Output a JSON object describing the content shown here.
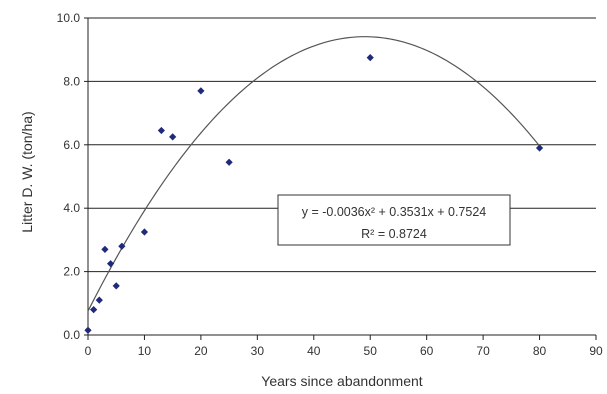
{
  "chart_data": {
    "type": "scatter",
    "xlabel": "Years since abandonment",
    "ylabel": "Litter D. W. (ton/ha)",
    "xlim": [
      0,
      90
    ],
    "ylim": [
      0,
      10
    ],
    "x_ticks": [
      "0",
      "10",
      "20",
      "30",
      "40",
      "50",
      "60",
      "70",
      "80",
      "90"
    ],
    "y_ticks": [
      "0.0",
      "2.0",
      "4.0",
      "6.0",
      "8.0",
      "10.0"
    ],
    "grid": "horizontal",
    "series": [
      {
        "points": [
          [
            0,
            0.15
          ],
          [
            1,
            0.8
          ],
          [
            2,
            1.1
          ],
          [
            3,
            2.7
          ],
          [
            4,
            2.25
          ],
          [
            5,
            1.55
          ],
          [
            6,
            2.8
          ],
          [
            10,
            3.25
          ],
          [
            13,
            6.45
          ],
          [
            15,
            6.25
          ],
          [
            20,
            7.7
          ],
          [
            25,
            5.45
          ],
          [
            50,
            8.75
          ],
          [
            80,
            5.9
          ]
        ]
      }
    ],
    "trendline": {
      "type": "polynomial",
      "coefficients": {
        "a": -0.0036,
        "b": 0.3531,
        "c": 0.7524
      },
      "equation_text": "y = -0.0036x² + 0.3531x + 0.7524",
      "r2_text": "R² = 0.8724"
    },
    "colors": {
      "points": "#1f2a78",
      "trendline": "#555555",
      "grid": "#222222"
    }
  }
}
